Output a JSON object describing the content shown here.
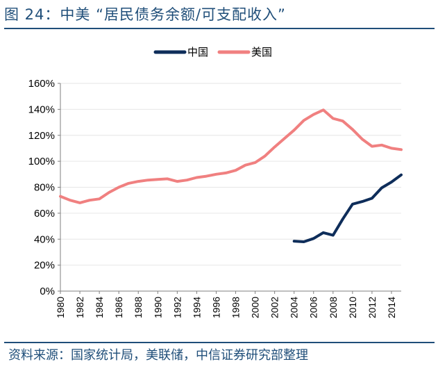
{
  "header": {
    "title": "图 24：中美 “居民债务余额/可支配收入”"
  },
  "footer": {
    "source": "资料来源：国家统计局，美联储，中信证券研究部整理"
  },
  "chart_data": {
    "type": "line",
    "title": "",
    "xlabel": "",
    "ylabel": "",
    "ylim": [
      0,
      160
    ],
    "yticks": [
      "0%",
      "20%",
      "40%",
      "60%",
      "80%",
      "100%",
      "120%",
      "140%",
      "160%"
    ],
    "xlim": [
      1980,
      2015
    ],
    "xticks": [
      "1980",
      "1982",
      "1984",
      "1986",
      "1988",
      "1990",
      "1992",
      "1994",
      "1996",
      "1998",
      "2000",
      "2002",
      "2004",
      "2006",
      "2008",
      "2010",
      "2012",
      "2014"
    ],
    "legend_position": "top-center",
    "series": [
      {
        "name": "中国",
        "color": "#0e2d5a",
        "x": [
          2004,
          2005,
          2006,
          2007,
          2008,
          2009,
          2010,
          2011,
          2012,
          2013,
          2014,
          2015
        ],
        "values": [
          38.5,
          38,
          40.5,
          45,
          43,
          55.5,
          67,
          69,
          71.5,
          79.5,
          84,
          89.5
        ]
      },
      {
        "name": "美国",
        "color": "#f08080",
        "x": [
          1980,
          1981,
          1982,
          1983,
          1984,
          1985,
          1986,
          1987,
          1988,
          1989,
          1990,
          1991,
          1992,
          1993,
          1994,
          1995,
          1996,
          1997,
          1998,
          1999,
          2000,
          2001,
          2002,
          2003,
          2004,
          2005,
          2006,
          2007,
          2008,
          2009,
          2010,
          2011,
          2012,
          2013,
          2014,
          2015
        ],
        "values": [
          73,
          70,
          68,
          70,
          71,
          76,
          80,
          83,
          84.5,
          85.5,
          86,
          86.5,
          84.5,
          85.5,
          87.5,
          88.5,
          90,
          91,
          93,
          97,
          99,
          104,
          111,
          117.5,
          124,
          131.5,
          136,
          139.5,
          133,
          131,
          124.5,
          117,
          111.5,
          112.5,
          110,
          109
        ]
      }
    ]
  }
}
